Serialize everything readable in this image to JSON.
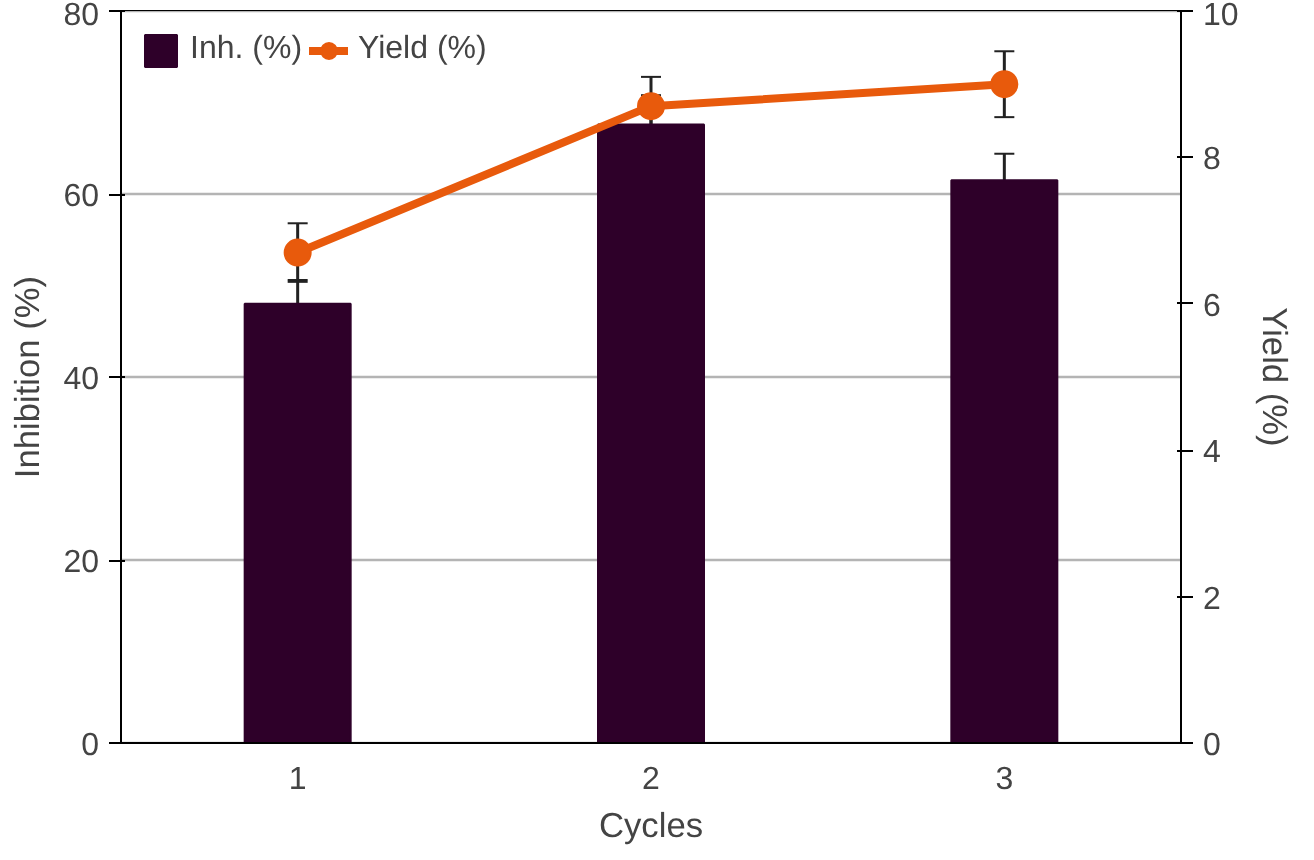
{
  "chart_data": {
    "type": "bar",
    "xlabel": "Cycles",
    "ylabel": "Inhibition (%)",
    "y2label": "Yield (%)",
    "categories": [
      "1",
      "2",
      "3"
    ],
    "series": [
      {
        "name": "Inh. (%)",
        "color": "#2e0029",
        "values": [
          48,
          67.6,
          61.5
        ],
        "errors": [
          2.6,
          3.2,
          2.9
        ]
      },
      {
        "name": "Yield (%)",
        "type": "line",
        "axis": "y2",
        "color": "#e85a0c",
        "values": [
          6.7,
          8.7,
          9.0
        ],
        "errors": [
          0.4,
          0.4,
          0.45
        ]
      }
    ],
    "ylim": [
      0,
      80
    ],
    "yticks": [
      0,
      20,
      40,
      60,
      80
    ],
    "y2lim": [
      0,
      10
    ],
    "y2ticks": [
      0,
      2,
      4,
      6,
      8,
      10
    ],
    "grid": "y",
    "legend": "top left",
    "marker": "circle"
  }
}
